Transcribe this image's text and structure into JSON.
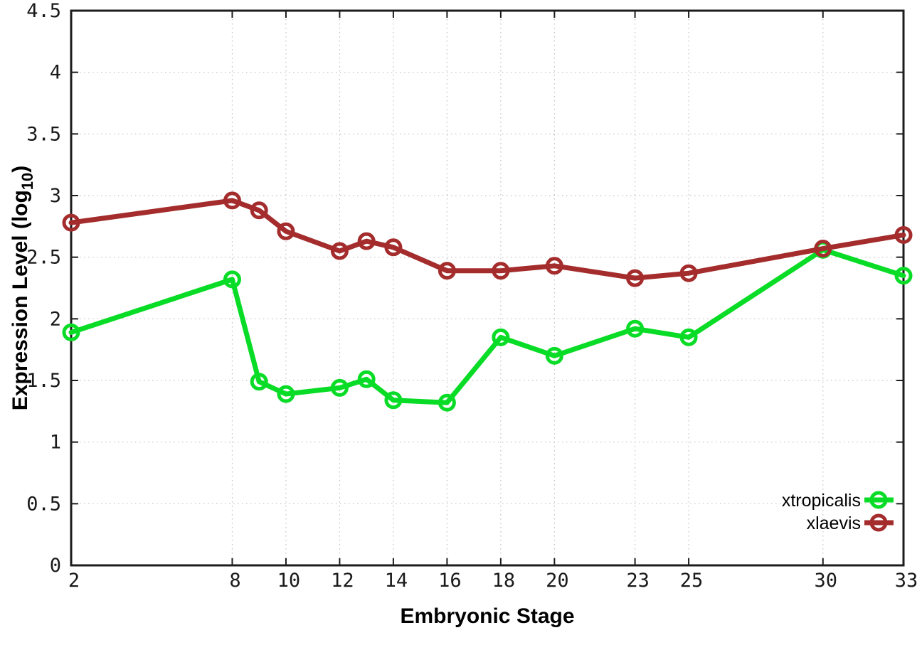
{
  "chart_data": {
    "type": "line",
    "title": "",
    "xlabel": "Embryonic Stage",
    "ylabel": "Expression Level (log10)",
    "ylabel_parts": {
      "main": "Expression Level (log",
      "sub": "10",
      "close": ")"
    },
    "x": [
      2,
      8,
      9,
      10,
      12,
      13,
      14,
      16,
      18,
      20,
      23,
      25,
      30,
      33
    ],
    "series": [
      {
        "name": "xtropicalis",
        "color": "#09dc26",
        "values": [
          1.89,
          2.32,
          1.49,
          1.39,
          1.44,
          1.51,
          1.34,
          1.32,
          1.85,
          1.7,
          1.92,
          1.85,
          2.56,
          2.35
        ]
      },
      {
        "name": "xlaevis",
        "color": "#a42c2c",
        "values": [
          2.78,
          2.96,
          2.88,
          2.71,
          2.55,
          2.63,
          2.58,
          2.39,
          2.39,
          2.43,
          2.33,
          2.37,
          2.57,
          2.68
        ]
      }
    ],
    "xlim": [
      2,
      33
    ],
    "ylim": [
      0,
      4.5
    ],
    "x_ticks": [
      2,
      8,
      10,
      12,
      14,
      16,
      18,
      20,
      23,
      25,
      30,
      33
    ],
    "y_ticks": [
      0,
      0.5,
      1,
      1.5,
      2,
      2.5,
      3,
      3.5,
      4,
      4.5
    ],
    "grid": true,
    "legend_position": "bottom-right",
    "marker": "open-circle",
    "background": "#ffffff"
  }
}
